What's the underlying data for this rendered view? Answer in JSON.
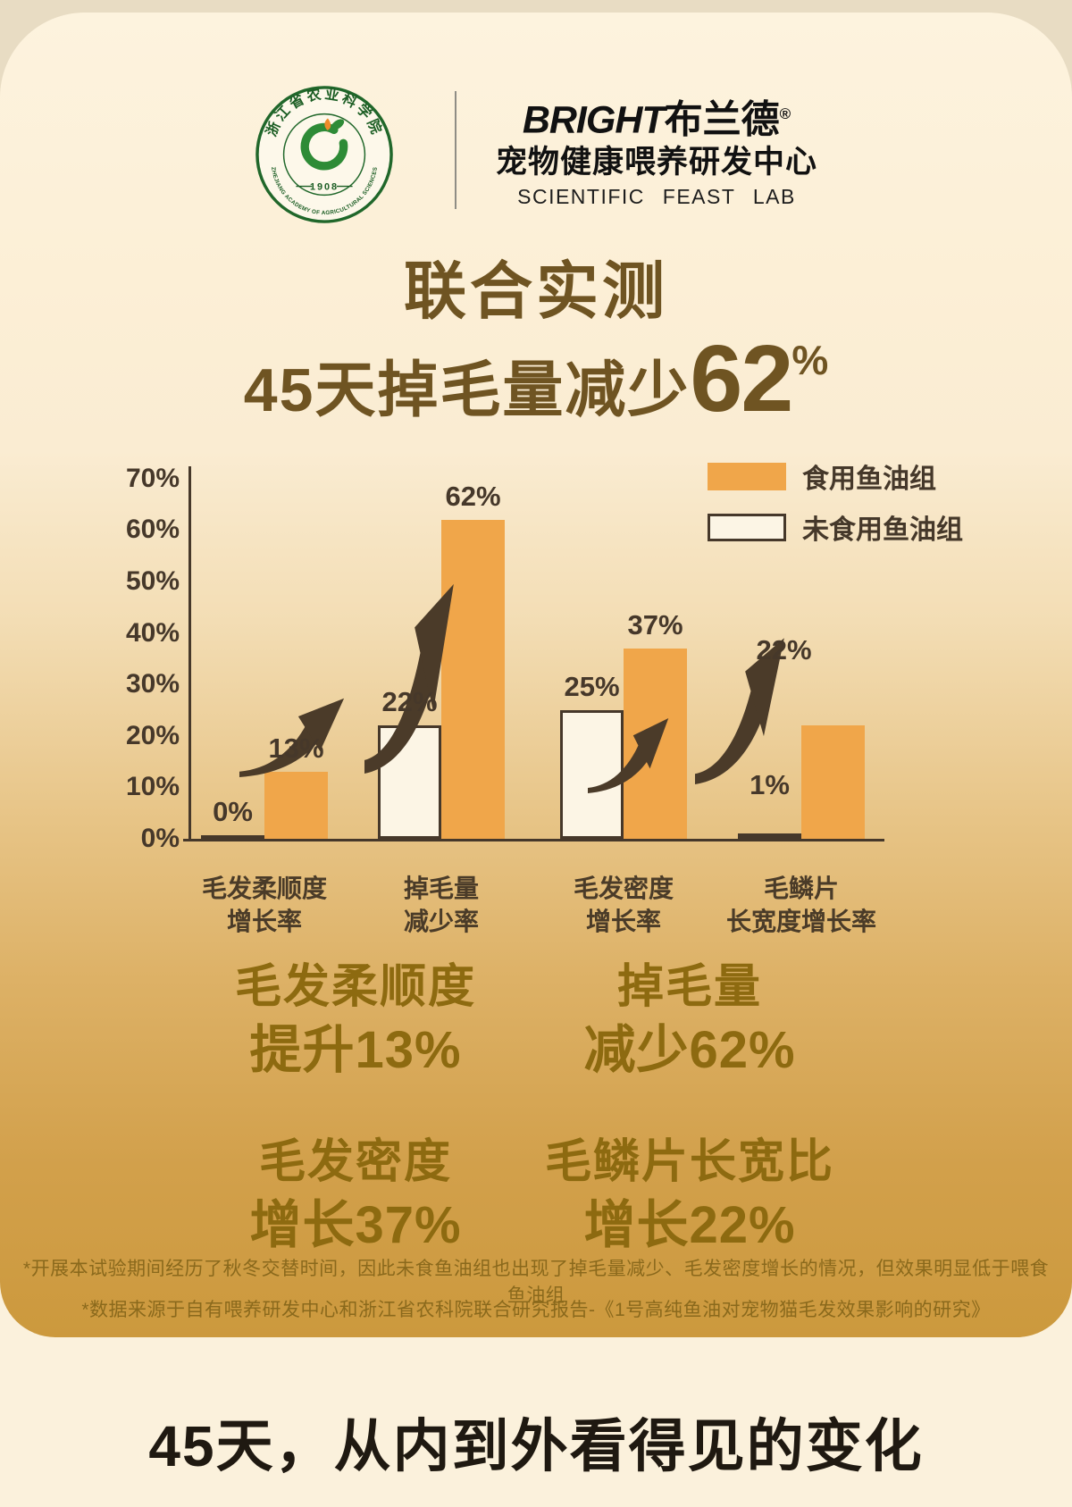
{
  "header": {
    "badge": {
      "org_cn": "浙江省农业科学院",
      "org_en": "ZHEJIANG ACADEMY OF AGRICULTURAL SCIENCES",
      "year": "1908"
    },
    "brand": {
      "latin": "BRIGHT",
      "cn": "布兰德",
      "reg": "®",
      "dept": "宠物健康喂养研发中心",
      "sub": "SCIENTIFIC FEAST LAB"
    }
  },
  "title": {
    "line1": "联合实测",
    "line2_prefix": "45天掉毛量减少",
    "line2_big": "62",
    "line2_pct": "%"
  },
  "chart_data": {
    "type": "bar",
    "title": "45天掉毛量减少62%",
    "xlabel": "",
    "ylabel": "",
    "ylim": [
      0,
      70
    ],
    "ytick_step": 10,
    "grid": false,
    "legend_position": "top-right",
    "categories": [
      [
        "毛发柔顺度",
        "增长率"
      ],
      [
        "掉毛量",
        "减少率"
      ],
      [
        "毛发密度",
        "增长率"
      ],
      [
        "毛鳞片",
        "长宽度增长率"
      ]
    ],
    "series": [
      {
        "name": "未食用鱼油组",
        "values": [
          0,
          22,
          25,
          1
        ]
      },
      {
        "name": "食用鱼油组",
        "values": [
          13,
          62,
          37,
          22
        ]
      }
    ],
    "value_labels": {
      "no_oil": [
        "0%",
        "22%",
        "25%",
        "1%"
      ],
      "oil": [
        "13%",
        "62%",
        "37%",
        "22%"
      ]
    },
    "ytick_labels": [
      "70%",
      "60%",
      "50%",
      "40%",
      "30%",
      "20%",
      "10%",
      "0%"
    ],
    "legend": [
      {
        "label": "食用鱼油组",
        "color": "#f0a64a",
        "filled": true
      },
      {
        "label": "未食用鱼油组",
        "color": "#fcf5e5",
        "filled": false
      }
    ],
    "colors": {
      "oil_bar": "#f0a64a",
      "no_oil_fill": "#fcf5e5",
      "axis": "#46382a",
      "arrow": "#4b3b29"
    }
  },
  "summary": {
    "cells": [
      {
        "label": "毛发柔顺度",
        "value": "提升13%"
      },
      {
        "label": "掉毛量",
        "value": "减少62%"
      },
      {
        "label": "毛发密度",
        "value": "增长37%"
      },
      {
        "label": "毛鳞片长宽比",
        "value": "增长22%"
      }
    ]
  },
  "footnotes": [
    "*开展本试验期间经历了秋冬交替时间，因此未食鱼油组也出现了掉毛量减少、毛发密度增长的情况，但效果明显低于喂食鱼油组",
    "*数据来源于自有喂养研发中心和浙江省农科院联合研究报告-《1号高纯鱼油对宠物猫毛发效果影响的研究》"
  ],
  "footer": {
    "title": "45天，从内到外看得见的变化"
  }
}
